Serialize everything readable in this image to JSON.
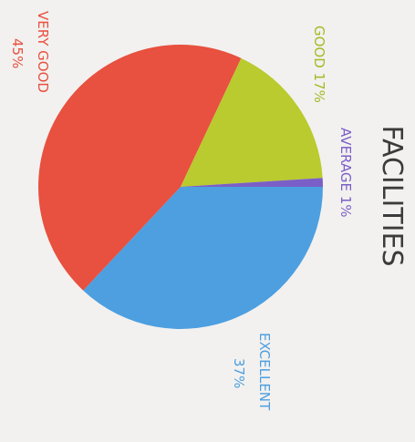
{
  "chart_data": {
    "type": "pie",
    "title": "FACILITIES",
    "slices": [
      {
        "label": "EXCELLENT",
        "value": 37,
        "value_label": "37%",
        "color": "#4d9fe0"
      },
      {
        "label": "VERY GOOD",
        "value": 45,
        "value_label": "45%",
        "color": "#e8503f"
      },
      {
        "label": "GOOD",
        "value": 17,
        "value_label": "17%",
        "color": "#b9cb2e"
      },
      {
        "label": "AVERAGE",
        "value": 1,
        "value_label": "1%",
        "color": "#7b5fc8"
      }
    ],
    "orientation": "rotated 90 degrees clockwise"
  }
}
